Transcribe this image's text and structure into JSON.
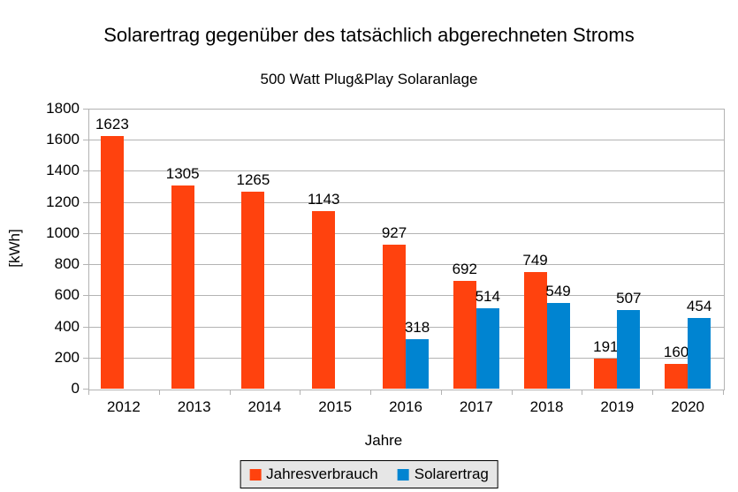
{
  "chart_data": {
    "type": "bar",
    "title": "Solarertrag gegenüber des tatsächlich abgerechneten Stroms",
    "subtitle": "500 Watt Plug&Play Solaranlage",
    "xlabel": "Jahre",
    "ylabel": "[kWh]",
    "categories": [
      "2012",
      "2013",
      "2014",
      "2015",
      "2016",
      "2017",
      "2018",
      "2019",
      "2020"
    ],
    "series": [
      {
        "name": "Jahresverbrauch",
        "color": "#FF420E",
        "values": [
          1623,
          1305,
          1265,
          1143,
          927,
          692,
          749,
          191,
          160
        ]
      },
      {
        "name": "Solarertrag",
        "color": "#0084D1",
        "values": [
          null,
          null,
          null,
          null,
          318,
          514,
          549,
          507,
          454
        ]
      }
    ],
    "ylim": [
      0,
      1800
    ],
    "yticks": [
      0,
      200,
      400,
      600,
      800,
      1000,
      1200,
      1400,
      1600,
      1800
    ],
    "grid": "horizontal",
    "legend_position": "bottom",
    "data_labels": true,
    "colors": {
      "background": "#FFFFFF",
      "text": "#000000",
      "gridline": "#B3B3B3",
      "axis": "#B3B3B3",
      "legend_background": "#E6E6E6",
      "legend_border": "#000000"
    }
  }
}
